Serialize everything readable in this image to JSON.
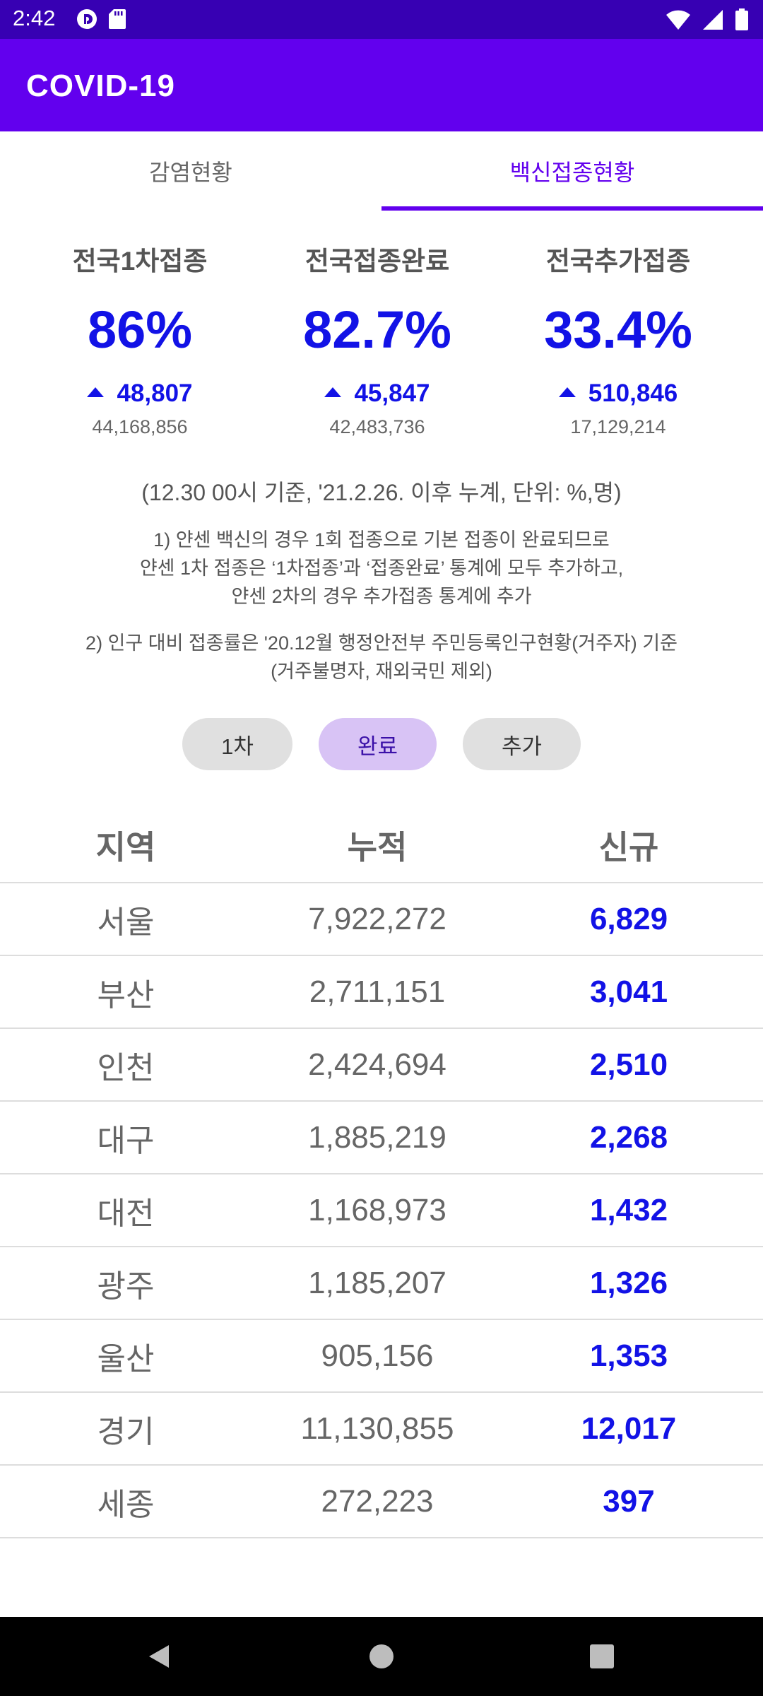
{
  "status_bar": {
    "time": "2:42"
  },
  "app": {
    "title": "COVID-19"
  },
  "tabs": [
    {
      "label": "감염현황",
      "active": false
    },
    {
      "label": "백신접종현황",
      "active": true
    }
  ],
  "stats": [
    {
      "label": "전국1차접종",
      "value": "86%",
      "delta": "48,807",
      "total": "44,168,856"
    },
    {
      "label": "전국접종완료",
      "value": "82.7%",
      "delta": "45,847",
      "total": "42,483,736"
    },
    {
      "label": "전국추가접종",
      "value": "33.4%",
      "delta": "510,846",
      "total": "17,129,214"
    }
  ],
  "notes": {
    "basis": "(12.30 00시 기준, '21.2.26. 이후 누계, 단위: %,명)",
    "note1": [
      "1) 얀센 백신의 경우 1회 접종으로 기본 접종이 완료되므로",
      "얀센 1차 접종은 ‘1차접종’과 ‘접종완료’ 통계에 모두 추가하고,",
      "얀센 2차의 경우 추가접종 통계에 추가"
    ],
    "note2": [
      "2) 인구 대비 접종률은 '20.12월 행정안전부 주민등록인구현황(거주자) 기준",
      "(거주불명자, 재외국민 제외)"
    ]
  },
  "filters": [
    {
      "label": "1차",
      "selected": false
    },
    {
      "label": "완료",
      "selected": true
    },
    {
      "label": "추가",
      "selected": false
    }
  ],
  "table": {
    "headers": [
      "지역",
      "누적",
      "신규"
    ],
    "rows": [
      {
        "region": "서울",
        "cumulative": "7,922,272",
        "new": "6,829"
      },
      {
        "region": "부산",
        "cumulative": "2,711,151",
        "new": "3,041"
      },
      {
        "region": "인천",
        "cumulative": "2,424,694",
        "new": "2,510"
      },
      {
        "region": "대구",
        "cumulative": "1,885,219",
        "new": "2,268"
      },
      {
        "region": "대전",
        "cumulative": "1,168,973",
        "new": "1,432"
      },
      {
        "region": "광주",
        "cumulative": "1,185,207",
        "new": "1,326"
      },
      {
        "region": "울산",
        "cumulative": "905,156",
        "new": "1,353"
      },
      {
        "region": "경기",
        "cumulative": "11,130,855",
        "new": "12,017"
      },
      {
        "region": "세종",
        "cumulative": "272,223",
        "new": "397"
      }
    ]
  },
  "colors": {
    "status_bar": "#3700b3",
    "app_bar": "#6200ee",
    "accent_blue": "#1212e6",
    "selected_pill": "#d8c3f5"
  },
  "icons": {
    "status_left": [
      "pocket-casts-icon",
      "sd-card-icon"
    ],
    "status_right": [
      "wifi-icon",
      "cellular-signal-icon",
      "battery-icon"
    ],
    "nav": [
      "back-icon",
      "home-icon",
      "recents-icon"
    ]
  }
}
